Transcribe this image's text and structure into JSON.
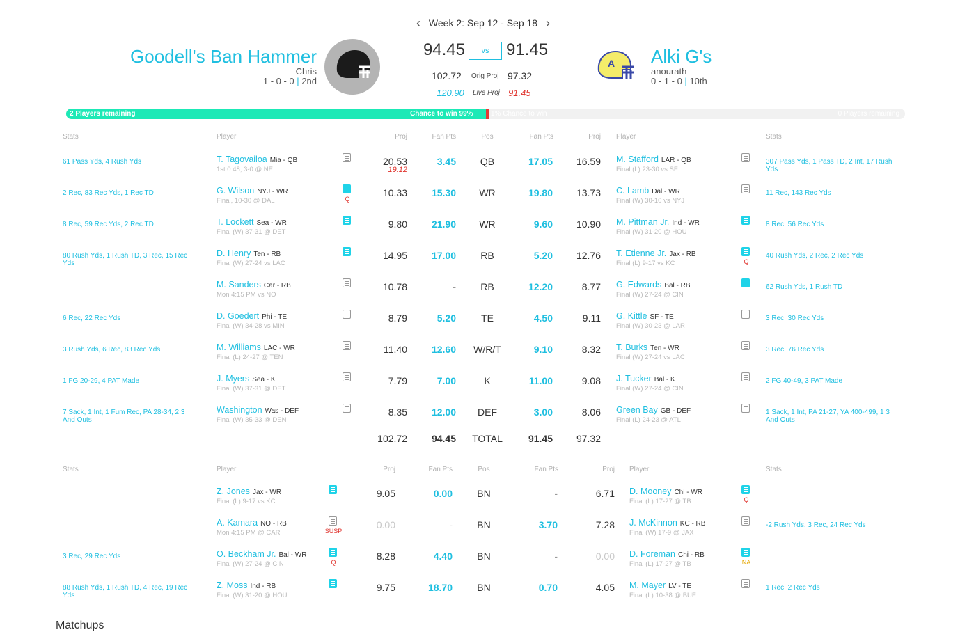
{
  "week": {
    "label": "Week 2: Sep 12 - Sep 18"
  },
  "home": {
    "name": "Goodell's Ban Hammer",
    "owner": "Chris",
    "record": "1 - 0 - 0",
    "rank": "2nd",
    "score": "94.45",
    "orig_proj": "102.72",
    "live_proj": "120.90"
  },
  "away": {
    "name": "Alki G's",
    "owner": "anourath",
    "record": "0 - 1 - 0",
    "rank": "10th",
    "score": "91.45",
    "orig_proj": "97.32",
    "live_proj": "91.45"
  },
  "labels": {
    "vs": "vs",
    "orig_proj": "Orig Proj",
    "live_proj": "Live Proj",
    "sep": "|"
  },
  "progress": {
    "home_label": "2 Players remaining",
    "home_chance": "Chance to win 99%",
    "away_chance": "1% Chance to win",
    "away_label": "0 Players remaining",
    "home_fraction": 0.99
  },
  "headers": {
    "stats": "Stats",
    "player": "Player",
    "proj": "Proj",
    "fan_pts": "Fan Pts",
    "pos": "Pos"
  },
  "starters": [
    {
      "h": {
        "stats": "61 Pass Yds, 4 Rush Yds",
        "name": "T. Tagovailoa",
        "team": "Mia - QB",
        "game": "1st 0:48, 3-0 @ NE",
        "note": "outline",
        "proj": "20.53",
        "sub": "19.12",
        "pts": "3.45"
      },
      "pos": "QB",
      "a": {
        "pts": "17.05",
        "proj": "16.59",
        "name": "M. Stafford",
        "team": "LAR - QB",
        "game": "Final (L) 23-30 vs SF",
        "note": "outline",
        "stats": "307 Pass Yds, 1 Pass TD, 2 Int, 17 Rush Yds"
      }
    },
    {
      "h": {
        "stats": "2 Rec, 83 Rec Yds, 1 Rec TD",
        "name": "G. Wilson",
        "team": "NYJ - WR",
        "game": "Final, 10-30 @ DAL",
        "note": "filled",
        "tag": "Q",
        "proj": "10.33",
        "pts": "15.30"
      },
      "pos": "WR",
      "a": {
        "pts": "19.80",
        "proj": "13.73",
        "name": "C. Lamb",
        "team": "Dal - WR",
        "game": "Final (W) 30-10 vs NYJ",
        "note": "outline",
        "stats": "11 Rec, 143 Rec Yds"
      }
    },
    {
      "h": {
        "stats": "8 Rec, 59 Rec Yds, 2 Rec TD",
        "name": "T. Lockett",
        "team": "Sea - WR",
        "game": "Final (W) 37-31 @ DET",
        "note": "filled",
        "proj": "9.80",
        "pts": "21.90"
      },
      "pos": "WR",
      "a": {
        "pts": "9.60",
        "proj": "10.90",
        "name": "M. Pittman Jr.",
        "team": "Ind - WR",
        "game": "Final (W) 31-20 @ HOU",
        "note": "filled",
        "stats": "8 Rec, 56 Rec Yds"
      }
    },
    {
      "h": {
        "stats": "80 Rush Yds, 1 Rush TD, 3 Rec, 15 Rec Yds",
        "name": "D. Henry",
        "team": "Ten - RB",
        "game": "Final (W) 27-24 vs LAC",
        "note": "filled",
        "proj": "14.95",
        "pts": "17.00"
      },
      "pos": "RB",
      "a": {
        "pts": "5.20",
        "proj": "12.76",
        "name": "T. Etienne Jr.",
        "team": "Jax - RB",
        "game": "Final (L) 9-17 vs KC",
        "note": "filled",
        "tag": "Q",
        "stats": "40 Rush Yds, 2 Rec, 2 Rec Yds"
      }
    },
    {
      "h": {
        "stats": "",
        "name": "M. Sanders",
        "team": "Car - RB",
        "game": "Mon 4:15 PM vs NO",
        "note": "outline",
        "proj": "10.78",
        "pts": "-"
      },
      "pos": "RB",
      "a": {
        "pts": "12.20",
        "proj": "8.77",
        "name": "G. Edwards",
        "team": "Bal - RB",
        "game": "Final (W) 27-24 @ CIN",
        "note": "filled",
        "stats": "62 Rush Yds, 1 Rush TD"
      }
    },
    {
      "h": {
        "stats": "6 Rec, 22 Rec Yds",
        "name": "D. Goedert",
        "team": "Phi - TE",
        "game": "Final (W) 34-28 vs MIN",
        "note": "outline",
        "proj": "8.79",
        "pts": "5.20"
      },
      "pos": "TE",
      "a": {
        "pts": "4.50",
        "proj": "9.11",
        "name": "G. Kittle",
        "team": "SF - TE",
        "game": "Final (W) 30-23 @ LAR",
        "note": "outline",
        "stats": "3 Rec, 30 Rec Yds"
      }
    },
    {
      "h": {
        "stats": "3 Rush Yds, 6 Rec, 83 Rec Yds",
        "name": "M. Williams",
        "team": "LAC - WR",
        "game": "Final (L) 24-27 @ TEN",
        "note": "outline",
        "proj": "11.40",
        "pts": "12.60"
      },
      "pos": "W/R/T",
      "a": {
        "pts": "9.10",
        "proj": "8.32",
        "name": "T. Burks",
        "team": "Ten - WR",
        "game": "Final (W) 27-24 vs LAC",
        "note": "outline",
        "stats": "3 Rec, 76 Rec Yds"
      }
    },
    {
      "h": {
        "stats": "1 FG 20-29, 4 PAT Made",
        "name": "J. Myers",
        "team": "Sea - K",
        "game": "Final (W) 37-31 @ DET",
        "note": "outline",
        "proj": "7.79",
        "pts": "7.00"
      },
      "pos": "K",
      "a": {
        "pts": "11.00",
        "proj": "9.08",
        "name": "J. Tucker",
        "team": "Bal - K",
        "game": "Final (W) 27-24 @ CIN",
        "note": "outline",
        "stats": "2 FG 40-49, 3 PAT Made"
      }
    },
    {
      "h": {
        "stats": "7 Sack, 1 Int, 1 Fum Rec, PA 28-34, 2 3 And Outs",
        "name": "Washington",
        "team": "Was - DEF",
        "game": "Final (W) 35-33 @ DEN",
        "note": "outline",
        "proj": "8.35",
        "pts": "12.00"
      },
      "pos": "DEF",
      "a": {
        "pts": "3.00",
        "proj": "8.06",
        "name": "Green Bay",
        "team": "GB - DEF",
        "game": "Final (L) 24-23 @ ATL",
        "note": "outline",
        "stats": "1 Sack, 1 Int, PA 21-27, YA 400-499, 1 3 And Outs"
      }
    }
  ],
  "totals": {
    "h_proj": "102.72",
    "h_pts": "94.45",
    "label": "TOTAL",
    "a_pts": "91.45",
    "a_proj": "97.32"
  },
  "bench": [
    {
      "h": {
        "stats": "",
        "name": "Z. Jones",
        "team": "Jax - WR",
        "game": "Final (L) 9-17 vs KC",
        "note": "filled",
        "proj": "9.05",
        "pts": "0.00"
      },
      "pos": "BN",
      "a": {
        "pts": "-",
        "proj": "6.71",
        "name": "D. Mooney",
        "team": "Chi - WR",
        "game": "Final (L) 17-27 @ TB",
        "note": "filled",
        "tag": "Q",
        "stats": ""
      }
    },
    {
      "h": {
        "stats": "",
        "name": "A. Kamara",
        "team": "NO - RB",
        "game": "Mon 4:15 PM @ CAR",
        "note": "outline",
        "tag": "SUSP",
        "proj": "0.00",
        "pts": "-"
      },
      "pos": "BN",
      "a": {
        "pts": "3.70",
        "proj": "7.28",
        "name": "J. McKinnon",
        "team": "KC - RB",
        "game": "Final (W) 17-9 @ JAX",
        "note": "outline",
        "stats": "-2 Rush Yds, 3 Rec, 24 Rec Yds"
      }
    },
    {
      "h": {
        "stats": "3 Rec, 29 Rec Yds",
        "name": "O. Beckham Jr.",
        "team": "Bal - WR",
        "game": "Final (W) 27-24 @ CIN",
        "note": "filled",
        "tag": "Q",
        "proj": "8.28",
        "pts": "4.40"
      },
      "pos": "BN",
      "a": {
        "pts": "-",
        "proj": "0.00",
        "name": "D. Foreman",
        "team": "Chi - RB",
        "game": "Final (L) 17-27 @ TB",
        "note": "filled",
        "tag": "NA",
        "stats": ""
      }
    },
    {
      "h": {
        "stats": "88 Rush Yds, 1 Rush TD, 4 Rec, 19 Rec Yds",
        "name": "Z. Moss",
        "team": "Ind - RB",
        "game": "Final (W) 31-20 @ HOU",
        "note": "filled",
        "proj": "9.75",
        "pts": "18.70"
      },
      "pos": "BN",
      "a": {
        "pts": "0.70",
        "proj": "4.05",
        "name": "M. Mayer",
        "team": "LV - TE",
        "game": "Final (L) 10-38 @ BUF",
        "note": "outline",
        "stats": "1 Rec, 2 Rec Yds"
      }
    }
  ],
  "footer": {
    "matchups": "Matchups"
  },
  "colors": {
    "accent": "#1fbfe0",
    "win_bar": "#1de9b6",
    "alert": "#e53935"
  }
}
